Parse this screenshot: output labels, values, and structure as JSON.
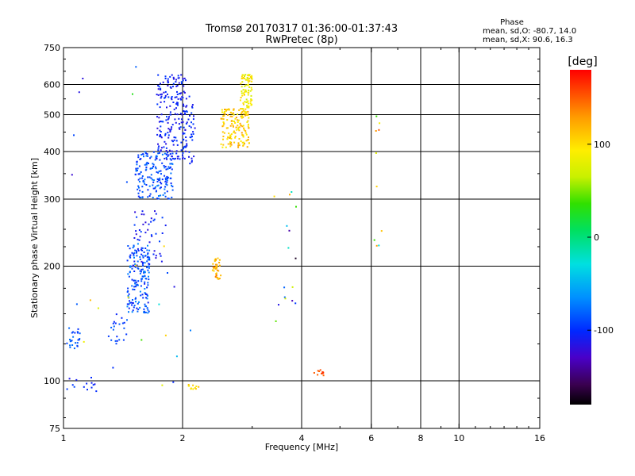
{
  "header": {
    "title_line1": "Tromsø 20170317 01:36:00-01:37:43",
    "title_line2": "RwPretec (8p)"
  },
  "phase_stats": {
    "label": "Phase",
    "line_o": "mean, sd,O: -80.7, 14.0",
    "line_x": "mean, sd,X:  90.6, 16.3"
  },
  "colorbar": {
    "unit": "[deg]",
    "range": [
      -180,
      180
    ],
    "ticks": [
      {
        "value": 100,
        "label": "100"
      },
      {
        "value": 0,
        "label": "0"
      },
      {
        "value": -100,
        "label": "-100"
      }
    ]
  },
  "chart_data": {
    "type": "scatter",
    "xlabel": "Frequency [MHz]",
    "ylabel": "Stationary phase Virtual Height [km]",
    "xscale": "log",
    "yscale": "log",
    "xlim": [
      1,
      16
    ],
    "ylim": [
      75,
      750
    ],
    "x_ticks": [
      {
        "value": 1,
        "label": "1"
      },
      {
        "value": 2,
        "label": "2"
      },
      {
        "value": 4,
        "label": "4"
      },
      {
        "value": 6,
        "label": "6"
      },
      {
        "value": 8,
        "label": "8"
      },
      {
        "value": 10,
        "label": "10"
      },
      {
        "value": 16,
        "label": "16"
      }
    ],
    "y_ticks": [
      {
        "value": 75,
        "label": "75"
      },
      {
        "value": 100,
        "label": "100"
      },
      {
        "value": 200,
        "label": "200"
      },
      {
        "value": 300,
        "label": "300"
      },
      {
        "value": 400,
        "label": "400"
      },
      {
        "value": 500,
        "label": "500"
      },
      {
        "value": 600,
        "label": "600"
      },
      {
        "value": 750,
        "label": "750"
      }
    ],
    "x_gridlines": [
      2,
      4,
      6,
      8,
      10
    ],
    "y_gridlines": [
      100,
      200,
      300,
      400,
      500,
      600
    ],
    "grid": true,
    "clusters": [
      {
        "x": [
          1.02,
          1.1
        ],
        "y": [
          120,
          140
        ],
        "n": 25,
        "phase": [
          -100,
          -70
        ]
      },
      {
        "x": [
          1.02,
          1.22
        ],
        "y": [
          92,
          102
        ],
        "n": 14,
        "phase": [
          -115,
          -85
        ]
      },
      {
        "x": [
          1.3,
          1.48
        ],
        "y": [
          125,
          150
        ],
        "n": 22,
        "phase": [
          -110,
          -80
        ]
      },
      {
        "x": [
          1.45,
          1.65
        ],
        "y": [
          150,
          230
        ],
        "n": 170,
        "phase": [
          -110,
          -65
        ]
      },
      {
        "x": [
          1.5,
          1.8
        ],
        "y": [
          200,
          290
        ],
        "n": 50,
        "phase": [
          -120,
          -90
        ]
      },
      {
        "x": [
          1.52,
          1.9
        ],
        "y": [
          300,
          400
        ],
        "n": 170,
        "phase": [
          -105,
          -70
        ]
      },
      {
        "x": [
          1.72,
          2.05
        ],
        "y": [
          380,
          640
        ],
        "n": 200,
        "phase": [
          -120,
          -90
        ]
      },
      {
        "x": [
          2.0,
          2.15
        ],
        "y": [
          370,
          560
        ],
        "n": 45,
        "phase": [
          -115,
          -90
        ]
      },
      {
        "x": [
          2.5,
          2.95
        ],
        "y": [
          410,
          520
        ],
        "n": 160,
        "phase": [
          85,
          130
        ]
      },
      {
        "x": [
          2.8,
          3.0
        ],
        "y": [
          520,
          640
        ],
        "n": 80,
        "phase": [
          70,
          110
        ]
      },
      {
        "x": [
          2.38,
          2.5
        ],
        "y": [
          185,
          210
        ],
        "n": 35,
        "phase": [
          100,
          140
        ]
      },
      {
        "x": [
          2.05,
          2.2
        ],
        "y": [
          95,
          98
        ],
        "n": 12,
        "phase": [
          90,
          120
        ]
      },
      {
        "x": [
          4.3,
          4.6
        ],
        "y": [
          103,
          107
        ],
        "n": 12,
        "phase": [
          140,
          165
        ]
      },
      {
        "x": [
          3.4,
          3.9
        ],
        "y": [
          130,
          330
        ],
        "n": 16,
        "phase": [
          -175,
          150
        ]
      },
      {
        "x": [
          1.05,
          2.1
        ],
        "y": [
          90,
          700
        ],
        "n": 25,
        "phase": [
          -130,
          120
        ]
      },
      {
        "x": [
          6.1,
          6.4
        ],
        "y": [
          200,
          520
        ],
        "n": 10,
        "phase": [
          -110,
          160
        ]
      }
    ]
  }
}
